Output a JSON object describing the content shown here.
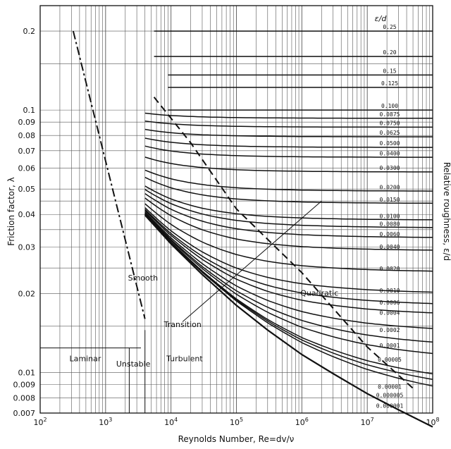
{
  "chart_data": {
    "type": "line",
    "title": "",
    "xlabel": "Reynolds Number, Re=dv/ν",
    "ylabel": "Friction factor, λ",
    "right_label": "Relative roughness, ε/d",
    "roughness_header": "ε/d",
    "x_scale": "log",
    "y_scale": "log",
    "xlim": [
      100,
      100000000
    ],
    "ylim": [
      0.007,
      0.25
    ],
    "grid": true,
    "x_tick_labels": [
      {
        "value": 100,
        "base": "10",
        "exp": "2"
      },
      {
        "value": 1000,
        "base": "10",
        "exp": "3"
      },
      {
        "value": 10000,
        "base": "10",
        "exp": "4"
      },
      {
        "value": 100000,
        "base": "10",
        "exp": "5"
      },
      {
        "value": 1000000,
        "base": "10",
        "exp": "6"
      },
      {
        "value": 10000000,
        "base": "10",
        "exp": "7"
      },
      {
        "value": 100000000,
        "base": "10",
        "exp": "8"
      }
    ],
    "y_ticks": [
      {
        "value": 0.2,
        "label": "0.2"
      },
      {
        "value": 0.1,
        "label": "0.1"
      },
      {
        "value": 0.09,
        "label": "0.09"
      },
      {
        "value": 0.08,
        "label": "0.08"
      },
      {
        "value": 0.07,
        "label": "0.07"
      },
      {
        "value": 0.06,
        "label": "0.06"
      },
      {
        "value": 0.05,
        "label": "0.05"
      },
      {
        "value": 0.04,
        "label": "0.04"
      },
      {
        "value": 0.03,
        "label": "0.03"
      },
      {
        "value": 0.02,
        "label": "0.02"
      },
      {
        "value": 0.01,
        "label": "0.01"
      },
      {
        "value": 0.009,
        "label": "0.009"
      },
      {
        "value": 0.008,
        "label": "0.008"
      },
      {
        "value": 0.007,
        "label": "0.007"
      }
    ],
    "region_labels": [
      {
        "text": "Laminar",
        "x": 280,
        "y": 0.0113
      },
      {
        "text": "Unstable",
        "x": 1450,
        "y": 0.0108
      },
      {
        "text": "Turbulent",
        "x": 8500,
        "y": 0.0113
      }
    ],
    "annotations": [
      {
        "text": "Smooth",
        "x": 2200,
        "y": 0.0224
      },
      {
        "text": "Transition",
        "x": 7800,
        "y": 0.0149
      },
      {
        "text": "Quadratic",
        "x": 950000,
        "y": 0.0196
      }
    ],
    "laminar_line": {
      "x": [
        320,
        4000
      ],
      "y": [
        0.2,
        0.016
      ]
    },
    "smooth_curve": {
      "x": [
        4000,
        10000,
        30000,
        100000,
        300000,
        1000000,
        3000000,
        10000000,
        30000000,
        100000000
      ],
      "y": [
        0.0398,
        0.0309,
        0.0236,
        0.018,
        0.0145,
        0.0117,
        0.0099,
        0.0083,
        0.0072,
        0.0062
      ]
    },
    "transition_line": {
      "x": [
        15000,
        2000000
      ],
      "y": [
        0.0156,
        0.045
      ]
    },
    "quadratic_boundary": {
      "x": [
        5500,
        20000,
        100000,
        1000000,
        10000000,
        50000000
      ],
      "y": [
        0.112,
        0.075,
        0.042,
        0.024,
        0.0125,
        0.0087
      ]
    },
    "series": [
      {
        "name": "0.25",
        "f": 0.2
      },
      {
        "name": "0.20",
        "f": 0.16
      },
      {
        "name": "0.15",
        "f": 0.136
      },
      {
        "name": "0.125",
        "f": 0.122
      },
      {
        "name": "0.100",
        "f": 0.1
      },
      {
        "name": "0.0875",
        "f": 0.093
      },
      {
        "name": "0.0750",
        "f": 0.086
      },
      {
        "name": "0.0625",
        "f": 0.079
      },
      {
        "name": "0.0500",
        "f": 0.072
      },
      {
        "name": "0.0400",
        "f": 0.066
      },
      {
        "name": "0.0300",
        "f": 0.058
      },
      {
        "name": "0.0200",
        "f": 0.049
      },
      {
        "name": "0.0150",
        "f": 0.044
      },
      {
        "name": "0.0100",
        "f": 0.038
      },
      {
        "name": "0.0080",
        "f": 0.0355
      },
      {
        "name": "0.0060",
        "f": 0.0325
      },
      {
        "name": "0.0040",
        "f": 0.029
      },
      {
        "name": "0.0020",
        "f": 0.024
      },
      {
        "name": "0.0010",
        "f": 0.0198
      },
      {
        "name": "0.0006",
        "f": 0.0178
      },
      {
        "name": "0.0004",
        "f": 0.0163
      },
      {
        "name": "0.0002",
        "f": 0.014
      },
      {
        "name": "0.0001",
        "f": 0.0122
      },
      {
        "name": "0.00005",
        "f": 0.0108
      },
      {
        "name": "0.00001",
        "f": 0.0085
      },
      {
        "name": "0.000005",
        "f": 0.0079
      },
      {
        "name": "0.000001",
        "f": 0.0072
      }
    ]
  }
}
